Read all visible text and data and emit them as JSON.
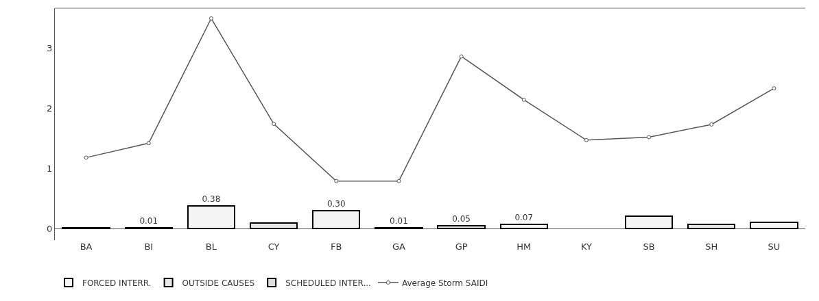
{
  "chart_data": {
    "type": "bar",
    "stacked": true,
    "categories": [
      "BA",
      "BI",
      "BL",
      "CY",
      "FB",
      "GA",
      "GP",
      "HM",
      "KY",
      "SB",
      "SH",
      "SU"
    ],
    "series": [
      {
        "name": "FORCED INTERR.",
        "color": "#f4f4f4",
        "values": [
          null,
          null,
          0.38,
          null,
          0.3,
          null,
          null,
          0.07,
          null,
          0.21,
          null,
          0.1
        ],
        "value_labels": [
          null,
          null,
          "0.38",
          null,
          "0.30",
          null,
          null,
          "0.07",
          null,
          null,
          null,
          null
        ]
      },
      {
        "name": "OUTSIDE CAUSES",
        "color": "#e8e8e8",
        "values": [
          null,
          null,
          null,
          0.09,
          null,
          null,
          0.05,
          null,
          null,
          null,
          0.07,
          null
        ],
        "value_labels": [
          null,
          null,
          null,
          null,
          null,
          null,
          "0.05",
          null,
          null,
          null,
          null,
          null
        ]
      },
      {
        "name": "SCHEDULED INTER...",
        "color": "#dcdcdc",
        "values": [
          0.01,
          0.01,
          null,
          null,
          null,
          0.01,
          null,
          null,
          null,
          null,
          null,
          null
        ],
        "value_labels": [
          null,
          "0.01",
          null,
          null,
          null,
          "0.01",
          null,
          null,
          null,
          null,
          null,
          null
        ]
      },
      {
        "name": "Average Storm SAIDI",
        "type": "line",
        "color": "#555555",
        "marker": "circle",
        "values": [
          1.18,
          1.42,
          3.49,
          1.74,
          0.79,
          0.79,
          2.86,
          2.14,
          1.47,
          1.52,
          1.73,
          2.33
        ]
      }
    ],
    "ylim": [
      -0.19,
      3.66
    ],
    "yticks": [
      0,
      1,
      2,
      3
    ],
    "legend": "bottom"
  }
}
